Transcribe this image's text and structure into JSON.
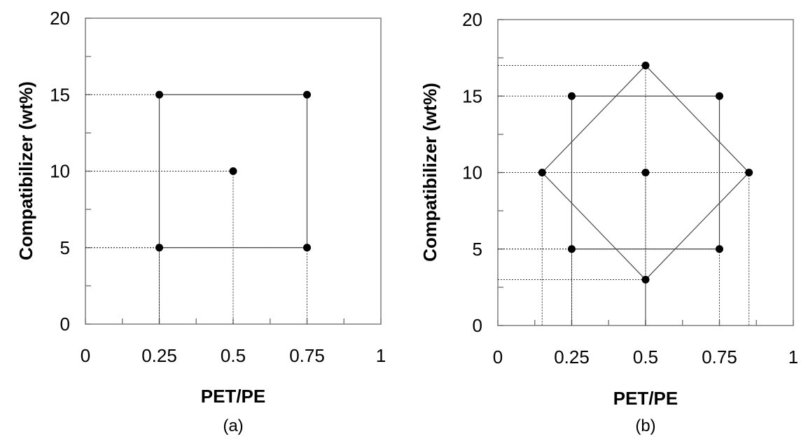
{
  "chart_data": [
    {
      "type": "scatter",
      "panel_label": "(a)",
      "xlabel": "PET/PE",
      "ylabel": "Compatibilizer (wt%)",
      "xlim": [
        0,
        1
      ],
      "ylim": [
        0,
        20
      ],
      "xticks": [
        "0",
        "0.25",
        "0.5",
        "0.75",
        "1"
      ],
      "yticks": [
        "0",
        "5",
        "10",
        "15",
        "20"
      ],
      "grid": false,
      "points": [
        {
          "x": 0.25,
          "y": 15
        },
        {
          "x": 0.75,
          "y": 15
        },
        {
          "x": 0.5,
          "y": 10
        },
        {
          "x": 0.25,
          "y": 5
        },
        {
          "x": 0.75,
          "y": 5
        }
      ],
      "shapes": [
        {
          "kind": "square",
          "vertices": [
            [
              0.25,
              15
            ],
            [
              0.75,
              15
            ],
            [
              0.75,
              5
            ],
            [
              0.25,
              5
            ]
          ]
        }
      ],
      "guides": [
        {
          "x": 0.25,
          "y": 15
        },
        {
          "x": 0.5,
          "y": 10
        },
        {
          "x": 0.25,
          "y": 5
        },
        {
          "x": 0.75,
          "y": 5
        }
      ]
    },
    {
      "type": "scatter",
      "panel_label": "(b)",
      "xlabel": "PET/PE",
      "ylabel": "Compatibilizer (wt%)",
      "xlim": [
        0,
        1
      ],
      "ylim": [
        0,
        20
      ],
      "xticks": [
        "0",
        "0.25",
        "0.5",
        "0.75",
        "1"
      ],
      "yticks": [
        "0",
        "5",
        "10",
        "15",
        "20"
      ],
      "grid": false,
      "points": [
        {
          "x": 0.5,
          "y": 17
        },
        {
          "x": 0.25,
          "y": 15
        },
        {
          "x": 0.75,
          "y": 15
        },
        {
          "x": 0.15,
          "y": 10
        },
        {
          "x": 0.5,
          "y": 10
        },
        {
          "x": 0.85,
          "y": 10
        },
        {
          "x": 0.25,
          "y": 5
        },
        {
          "x": 0.75,
          "y": 5
        },
        {
          "x": 0.5,
          "y": 3
        }
      ],
      "shapes": [
        {
          "kind": "square",
          "vertices": [
            [
              0.25,
              15
            ],
            [
              0.75,
              15
            ],
            [
              0.75,
              5
            ],
            [
              0.25,
              5
            ]
          ]
        },
        {
          "kind": "diamond",
          "vertices": [
            [
              0.5,
              17
            ],
            [
              0.85,
              10
            ],
            [
              0.5,
              3
            ],
            [
              0.15,
              10
            ]
          ]
        }
      ],
      "guides": [
        {
          "x": 0.5,
          "y": 17
        },
        {
          "x": 0.25,
          "y": 15
        },
        {
          "x": 0.15,
          "y": 10
        },
        {
          "x": 0.5,
          "y": 10
        },
        {
          "x": 0.85,
          "y": 10
        },
        {
          "x": 0.25,
          "y": 5
        },
        {
          "x": 0.75,
          "y": 5
        },
        {
          "x": 0.5,
          "y": 3
        }
      ]
    }
  ]
}
